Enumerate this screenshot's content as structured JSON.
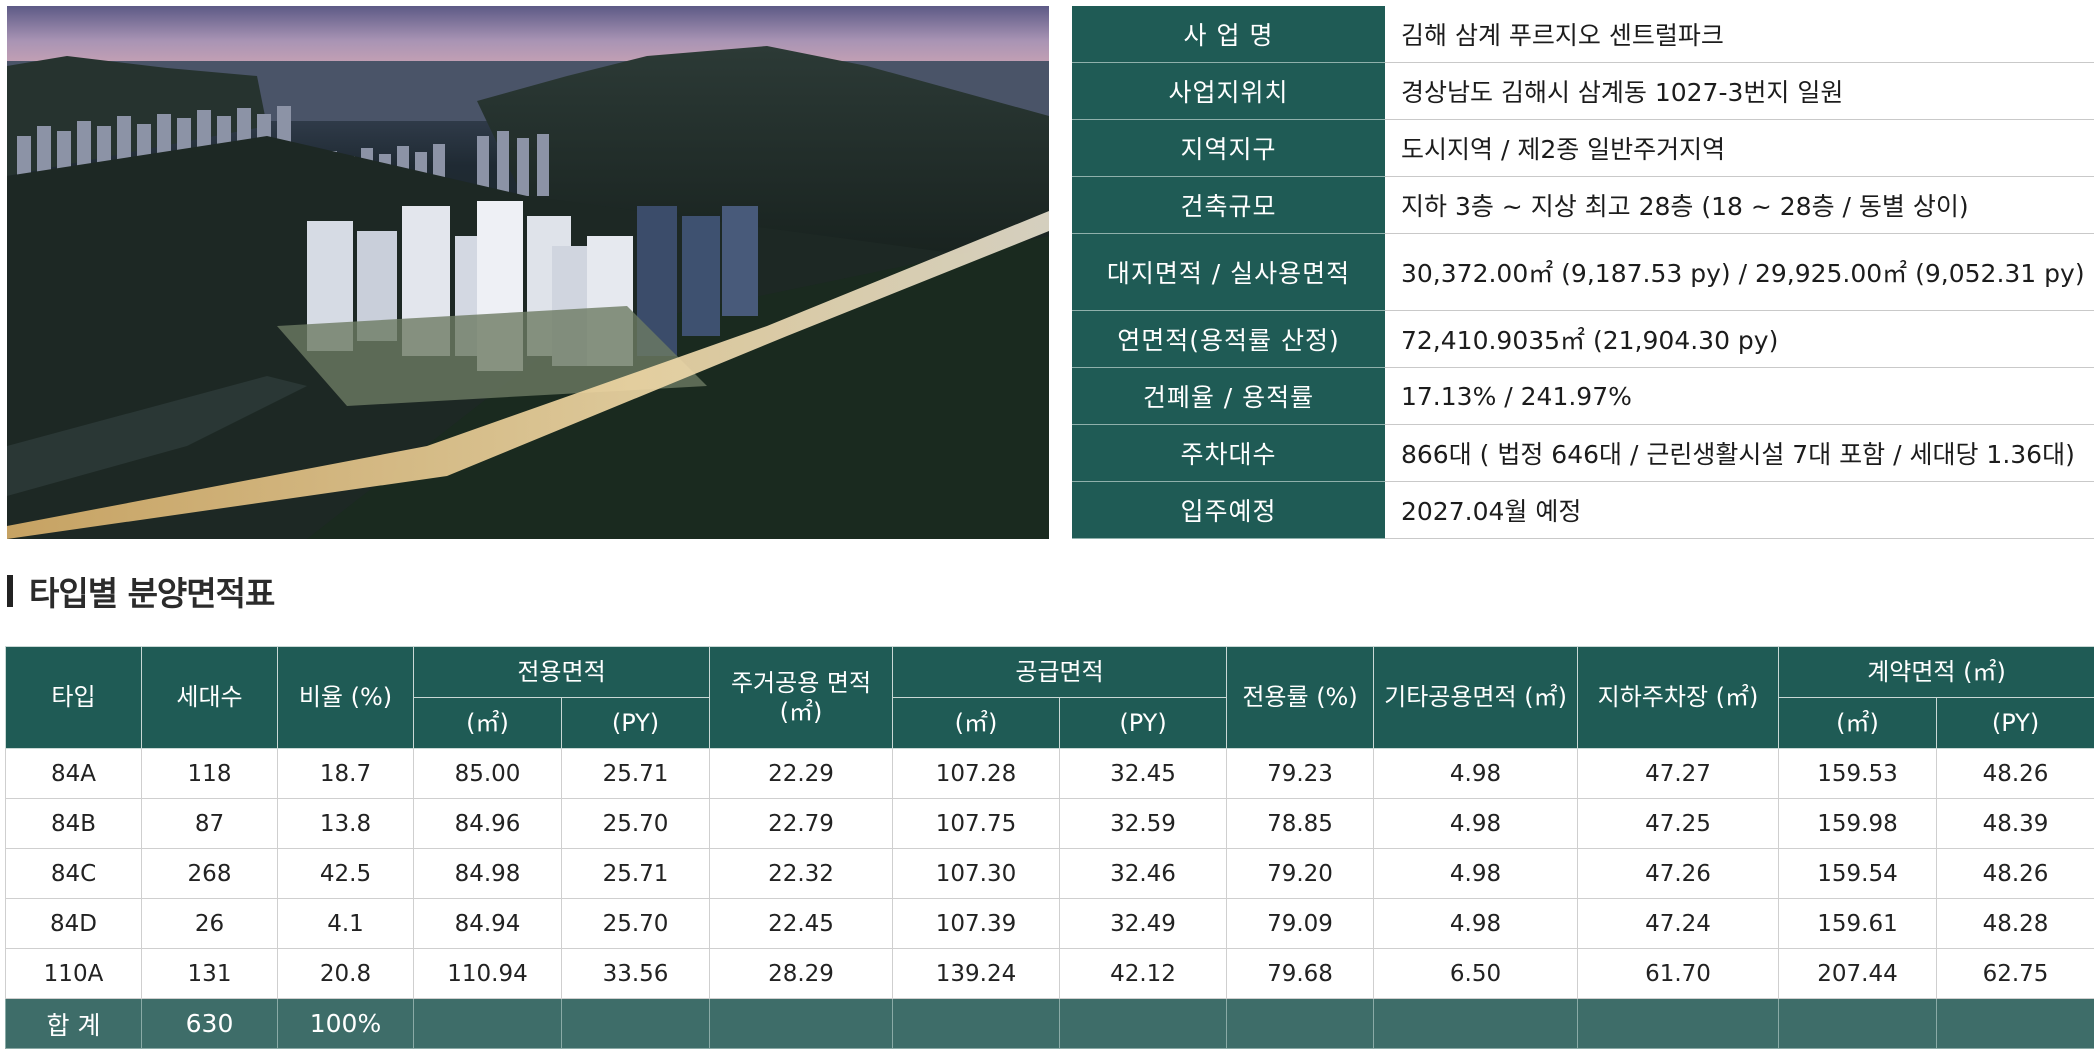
{
  "project_info": {
    "rows": [
      {
        "label": "사  업  명",
        "value": "김해 삼계 푸르지오 센트럴파크"
      },
      {
        "label": "사업지위치",
        "value": "경상남도 김해시 삼계동 1027-3번지 일원"
      },
      {
        "label": "지역지구",
        "value": "도시지역 / 제2종 일반주거지역"
      },
      {
        "label": "건축규모",
        "value": "지하 3층 ~ 지상 최고 28층 (18 ~ 28층 / 동별 상이)"
      },
      {
        "label": "대지면적 / 실사용면적",
        "value": "30,372.00㎡ (9,187.53 py) / 29,925.00㎡ (9,052.31 py)"
      },
      {
        "label": "연면적(용적률 산정)",
        "value": "72,410.9035㎡ (21,904.30 py)"
      },
      {
        "label": "건폐율 / 용적률",
        "value": "17.13% / 241.97%"
      },
      {
        "label": "주차대수",
        "value": "866대 ( 법정 646대 / 근린생활시설 7대 포함 / 세대당 1.36대)"
      },
      {
        "label": "입주예정",
        "value": "2027.04월 예정"
      }
    ]
  },
  "section_title": "타입별 분양면적표",
  "area_table": {
    "headers": {
      "type": "타입",
      "households": "세대수",
      "ratio": "비율 (%)",
      "exclusive": "전용면적",
      "residential_common": "주거공용 면적 (㎡)",
      "supply": "공급면적",
      "exclusive_rate": "전용률 (%)",
      "other_common": "기타공용면적 (㎡)",
      "parking": "지하주차장 (㎡)",
      "contract": "계약면적 (㎡)",
      "unit_m2": "(㎡)",
      "unit_py": "(PY)"
    },
    "rows": [
      [
        "84A",
        "118",
        "18.7",
        "85.00",
        "25.71",
        "22.29",
        "107.28",
        "32.45",
        "79.23",
        "4.98",
        "47.27",
        "159.53",
        "48.26"
      ],
      [
        "84B",
        "87",
        "13.8",
        "84.96",
        "25.70",
        "22.79",
        "107.75",
        "32.59",
        "78.85",
        "4.98",
        "47.25",
        "159.98",
        "48.39"
      ],
      [
        "84C",
        "268",
        "42.5",
        "84.98",
        "25.71",
        "22.32",
        "107.30",
        "32.46",
        "79.20",
        "4.98",
        "47.26",
        "159.54",
        "48.26"
      ],
      [
        "84D",
        "26",
        "4.1",
        "84.94",
        "25.70",
        "22.45",
        "107.39",
        "32.49",
        "79.09",
        "4.98",
        "47.24",
        "159.61",
        "48.28"
      ],
      [
        "110A",
        "131",
        "20.8",
        "110.94",
        "33.56",
        "28.29",
        "139.24",
        "42.12",
        "79.68",
        "6.50",
        "61.70",
        "207.44",
        "62.75"
      ]
    ],
    "total": {
      "label": "합  계",
      "households": "630",
      "ratio": "100%"
    }
  }
}
